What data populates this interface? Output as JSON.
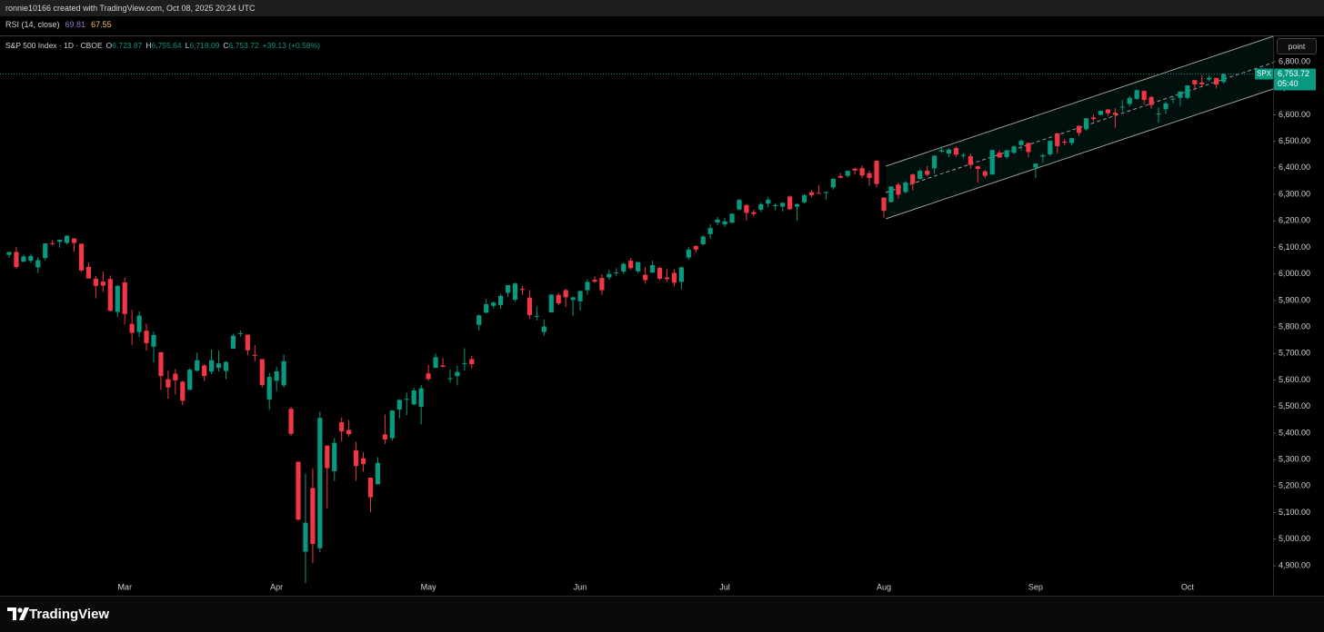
{
  "header": {
    "attribution": "ronnie10166 created with TradingView.com, Oct 08, 2025 20:24 UTC",
    "rsi_label": "RSI (14, close)",
    "rsi_values": [
      "69.81",
      "67.55"
    ]
  },
  "toolbar": {
    "scale_button": "point"
  },
  "footer": {
    "brand": "TradingView"
  },
  "chart_data": {
    "type": "candlestick",
    "title": "S&P 500 Index · 1D · CBOE",
    "ohlc_legend": [
      {
        "label": "O",
        "value": "6,723.87"
      },
      {
        "label": "H",
        "value": "6,755.64"
      },
      {
        "label": "L",
        "value": "6,718.09"
      },
      {
        "label": "C",
        "value": "6,753.72"
      }
    ],
    "change": "+39.13 (+0.58%)",
    "symbol_tag": "SPX",
    "price_tag": "6,753.72",
    "countdown": "05:40",
    "up_color": "#089981",
    "down_color": "#f23645",
    "grid": false,
    "ylim": [
      4787,
      6896
    ],
    "yticks": [
      {
        "value": 4900,
        "label": "4,900.00"
      },
      {
        "value": 5000,
        "label": "5,000.00"
      },
      {
        "value": 5100,
        "label": "5,100.00"
      },
      {
        "value": 5200,
        "label": "5,200.00"
      },
      {
        "value": 5300,
        "label": "5,300.00"
      },
      {
        "value": 5400,
        "label": "5,400.00"
      },
      {
        "value": 5500,
        "label": "5,500.00"
      },
      {
        "value": 5600,
        "label": "5,600.00"
      },
      {
        "value": 5700,
        "label": "5,700.00"
      },
      {
        "value": 5800,
        "label": "5,800.00"
      },
      {
        "value": 5900,
        "label": "5,900.00"
      },
      {
        "value": 6000,
        "label": "6,000.00"
      },
      {
        "value": 6100,
        "label": "6,100.00"
      },
      {
        "value": 6200,
        "label": "6,200.00"
      },
      {
        "value": 6300,
        "label": "6,300.00"
      },
      {
        "value": 6400,
        "label": "6,400.00"
      },
      {
        "value": 6500,
        "label": "6,500.00"
      },
      {
        "value": 6600,
        "label": "6,600.00"
      },
      {
        "value": 6700,
        "label": "6,700.00"
      },
      {
        "value": 6800,
        "label": "6,800.00"
      }
    ],
    "categories": [
      null,
      null,
      null,
      null,
      null,
      null,
      null,
      null,
      null,
      null,
      null,
      null,
      null,
      null,
      null,
      null,
      "Mar",
      null,
      null,
      null,
      null,
      null,
      null,
      null,
      null,
      null,
      null,
      null,
      null,
      null,
      null,
      null,
      null,
      null,
      null,
      null,
      null,
      "Apr",
      null,
      null,
      null,
      null,
      null,
      null,
      null,
      null,
      null,
      null,
      null,
      null,
      null,
      null,
      null,
      null,
      null,
      null,
      null,
      null,
      "May",
      null,
      null,
      null,
      null,
      null,
      null,
      null,
      null,
      null,
      null,
      null,
      null,
      null,
      null,
      null,
      null,
      null,
      null,
      null,
      null,
      "Jun",
      null,
      null,
      null,
      null,
      null,
      null,
      null,
      null,
      null,
      null,
      null,
      null,
      null,
      null,
      null,
      null,
      null,
      null,
      null,
      "Jul",
      null,
      null,
      null,
      null,
      null,
      null,
      null,
      null,
      null,
      null,
      null,
      null,
      null,
      null,
      null,
      null,
      null,
      null,
      null,
      null,
      null,
      "Aug",
      null,
      null,
      null,
      null,
      null,
      null,
      null,
      null,
      null,
      null,
      null,
      null,
      null,
      null,
      null,
      null,
      null,
      null,
      null,
      null,
      "Sep",
      null,
      null,
      null,
      null,
      null,
      null,
      null,
      null,
      null,
      null,
      null,
      null,
      null,
      null,
      null,
      null,
      null,
      null,
      null,
      null,
      "Oct",
      null,
      null,
      null,
      null,
      null
    ],
    "open": [
      6072,
      6083,
      6046,
      6050,
      6025,
      6060,
      6116,
      6121,
      6117,
      6134,
      6114,
      6027,
      5982,
      5971,
      5981,
      5857,
      5968,
      5812,
      5781,
      5786,
      5726,
      5705,
      5603,
      5624,
      5594,
      5563,
      5635,
      5655,
      5632,
      5646,
      5634,
      5718,
      5775,
      5771,
      5695,
      5679,
      5527,
      5597,
      5580,
      5492,
      5292,
      4953,
      5193,
      4966,
      5353,
      5256,
      5441,
      5412,
      5335,
      5305,
      5232,
      5207,
      5395,
      5381,
      5489,
      5529,
      5508,
      5499,
      5625,
      5646,
      5655,
      5606,
      5615,
      5663,
      5679,
      5808,
      5854,
      5880,
      5883,
      5929,
      5903,
      5944,
      5911,
      5842,
      5781,
      5855,
      5921,
      5939,
      5902,
      5897,
      5939,
      5978,
      5985,
      5987,
      6005,
      6009,
      6050,
      6010,
      5997,
      6005,
      6023,
      5987,
      6004,
      5970,
      6062,
      6105,
      6112,
      6150,
      6194,
      6187,
      6193,
      6243,
      6260,
      6233,
      6242,
      6265,
      6256,
      6254,
      6292,
      6254,
      6270,
      6308,
      6306,
      6306,
      6326,
      6369,
      6370,
      6397,
      6399,
      6380,
      6427,
      6288,
      6271,
      6337,
      6309,
      6375,
      6358,
      6389,
      6398,
      6462,
      6454,
      6475,
      6446,
      6444,
      6406,
      6387,
      6375,
      6457,
      6441,
      6457,
      6486,
      6494,
      6401,
      6443,
      6451,
      6530,
      6499,
      6494,
      6558,
      6546,
      6590,
      6600,
      6620,
      6608,
      6630,
      6641,
      6660,
      6690,
      6667,
      6605,
      6621,
      6661,
      6664,
      6664,
      6731,
      6722,
      6733,
      6739,
      6723.87
    ],
    "high": [
      6084,
      6101,
      6073,
      6076,
      6063,
      6116,
      6128,
      6129,
      6147,
      6134,
      6114,
      6044,
      5992,
      6009,
      5994,
      5959,
      5986,
      5865,
      5860,
      5812,
      5783,
      5705,
      5636,
      5642,
      5597,
      5645,
      5703,
      5660,
      5715,
      5711,
      5671,
      5775,
      5786,
      5772,
      5732,
      5679,
      5627,
      5650,
      5696,
      5500,
      5292,
      5247,
      5268,
      5481,
      5353,
      5381,
      5459,
      5450,
      5367,
      5328,
      5232,
      5309,
      5470,
      5485,
      5528,
      5553,
      5571,
      5581,
      5658,
      5700,
      5684,
      5640,
      5654,
      5720,
      5691,
      5847,
      5906,
      5896,
      5924,
      5958,
      5968,
      5954,
      5939,
      5878,
      5829,
      5924,
      5929,
      5944,
      5915,
      5937,
      5981,
      5991,
      5999,
      6016,
      6022,
      6043,
      6060,
      6045,
      6026,
      6050,
      6028,
      6018,
      6018,
      6028,
      6101,
      6109,
      6146,
      6187,
      6215,
      6211,
      6228,
      6284,
      6263,
      6242,
      6269,
      6290,
      6267,
      6270,
      6296,
      6266,
      6302,
      6316,
      6336,
      6310,
      6360,
      6381,
      6390,
      6401,
      6409,
      6390,
      6427,
      6288,
      6330,
      6345,
      6350,
      6379,
      6395,
      6407,
      6446,
      6481,
      6474,
      6481,
      6456,
      6454,
      6408,
      6393,
      6469,
      6466,
      6468,
      6484,
      6508,
      6495,
      6416,
      6453,
      6502,
      6532,
      6509,
      6513,
      6561,
      6588,
      6601,
      6616,
      6623,
      6625,
      6656,
      6671,
      6695,
      6693,
      6672,
      6628,
      6650,
      6670,
      6688,
      6711,
      6731,
      6750,
      6749,
      6740,
      6755.64
    ],
    "low": [
      6060,
      6020,
      6045,
      6042,
      6003,
      6051,
      6107,
      6099,
      6111,
      6084,
      6008,
      5983,
      5908,
      5932,
      5858,
      5837,
      5810,
      5733,
      5762,
      5711,
      5667,
      5564,
      5529,
      5546,
      5505,
      5563,
      5633,
      5597,
      5622,
      5632,
      5603,
      5718,
      5764,
      5694,
      5670,
      5572,
      5488,
      5558,
      5571,
      5390,
      5069,
      4835,
      4910,
      4950,
      5116,
      5220,
      5368,
      5387,
      5220,
      5255,
      5101,
      5207,
      5359,
      5371,
      5456,
      5468,
      5505,
      5433,
      5597,
      5646,
      5649,
      5590,
      5580,
      5635,
      5644,
      5786,
      5851,
      5870,
      5868,
      5913,
      5896,
      5921,
      5830,
      5825,
      5767,
      5855,
      5882,
      5875,
      5843,
      5862,
      5921,
      5966,
      5921,
      5978,
      5993,
      6000,
      6016,
      6003,
      5963,
      6005,
      5977,
      5971,
      5953,
      5943,
      6054,
      6080,
      6107,
      6132,
      6183,
      6177,
      6193,
      6240,
      6201,
      6217,
      6233,
      6251,
      6240,
      6236,
      6243,
      6201,
      6265,
      6288,
      6303,
      6281,
      6318,
      6360,
      6363,
      6375,
      6361,
      6332,
      6327,
      6212,
      6271,
      6283,
      6303,
      6315,
      6357,
      6368,
      6378,
      6456,
      6441,
      6441,
      6436,
      6397,
      6344,
      6361,
      6375,
      6438,
      6434,
      6452,
      6466,
      6441,
      6361,
      6419,
      6445,
      6454,
      6485,
      6485,
      6520,
      6541,
      6575,
      6598,
      6596,
      6551,
      6611,
      6632,
      6657,
      6640,
      6623,
      6570,
      6603,
      6645,
      6633,
      6657,
      6693,
      6705,
      6726,
      6700,
      6718.09
    ],
    "close": [
      6083,
      6026,
      6066,
      6068,
      6052,
      6115,
      6115,
      6129,
      6144,
      6117,
      6013,
      5983,
      5955,
      5956,
      5861,
      5955,
      5849,
      5778,
      5843,
      5739,
      5770,
      5615,
      5572,
      5599,
      5522,
      5639,
      5675,
      5615,
      5675,
      5663,
      5668,
      5767,
      5777,
      5712,
      5693,
      5581,
      5612,
      5633,
      5671,
      5397,
      5074,
      5062,
      4982,
      5457,
      5268,
      5363,
      5406,
      5396,
      5276,
      5283,
      5158,
      5288,
      5376,
      5485,
      5525,
      5529,
      5561,
      5569,
      5604,
      5686,
      5650,
      5607,
      5631,
      5664,
      5660,
      5844,
      5886,
      5892,
      5917,
      5958,
      5964,
      5940,
      5845,
      5842,
      5802,
      5922,
      5889,
      5912,
      5912,
      5936,
      5970,
      5971,
      5939,
      6000,
      6006,
      6038,
      6022,
      6045,
      5977,
      6033,
      5982,
      5981,
      5967,
      6025,
      6092,
      6092,
      6141,
      6173,
      6205,
      6198,
      6227,
      6279,
      6230,
      6226,
      6263,
      6280,
      6260,
      6268,
      6244,
      6263,
      6297,
      6297,
      6305,
      6309,
      6359,
      6363,
      6389,
      6390,
      6371,
      6362,
      6339,
      6238,
      6330,
      6299,
      6345,
      6340,
      6389,
      6374,
      6446,
      6467,
      6469,
      6450,
      6449,
      6411,
      6396,
      6370,
      6467,
      6439,
      6466,
      6481,
      6502,
      6460,
      6416,
      6448,
      6502,
      6482,
      6495,
      6512,
      6532,
      6587,
      6584,
      6615,
      6606,
      6600,
      6631,
      6664,
      6693,
      6656,
      6637,
      6605,
      6643,
      6661,
      6688,
      6711,
      6715,
      6715,
      6740,
      6714,
      6753.72
    ]
  }
}
